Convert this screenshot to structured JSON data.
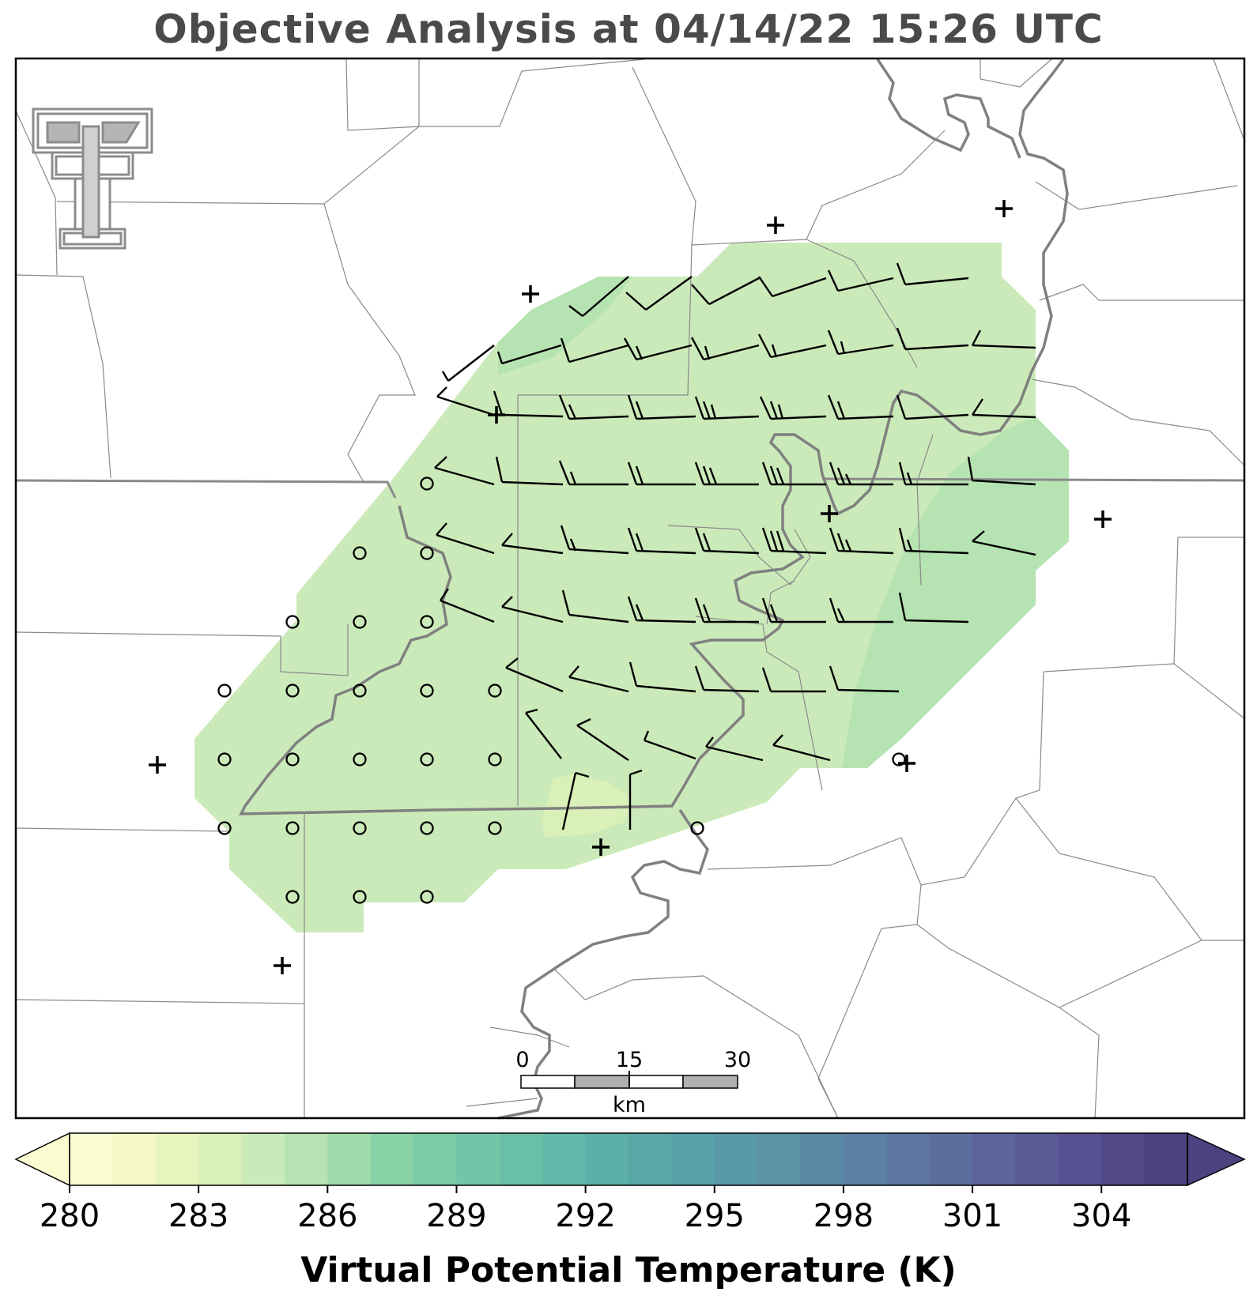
{
  "title": "Objective Analysis at 04/14/22 15:26 UTC",
  "colorbar": {
    "label": "Virtual Potential Temperature (K)",
    "min": 280,
    "max": 306,
    "step": 1,
    "ticks": [
      "280",
      "283",
      "286",
      "289",
      "292",
      "295",
      "298",
      "301",
      "304"
    ],
    "colors": [
      "#fbfbd2",
      "#f3f8c6",
      "#e6f4bd",
      "#d9f0b8",
      "#cbeab9",
      "#b6e3b2",
      "#9fdaaa",
      "#88d2a6",
      "#7bcca7",
      "#72c6a8",
      "#69bfa8",
      "#62b8a9",
      "#5cb0a8",
      "#58a8a8",
      "#57a1a8",
      "#5899a7",
      "#5a92a6",
      "#5b89a5",
      "#5c80a3",
      "#5c77a1",
      "#5c6e9e",
      "#5b649b",
      "#595a96",
      "#565190",
      "#524888",
      "#4d4180"
    ]
  },
  "scalebar": {
    "labels": [
      "0",
      "15",
      "30"
    ],
    "unit": "km"
  },
  "logo": "Texas Tech Double T",
  "stations": {
    "plus_count": 10,
    "circle_count": 26
  }
}
